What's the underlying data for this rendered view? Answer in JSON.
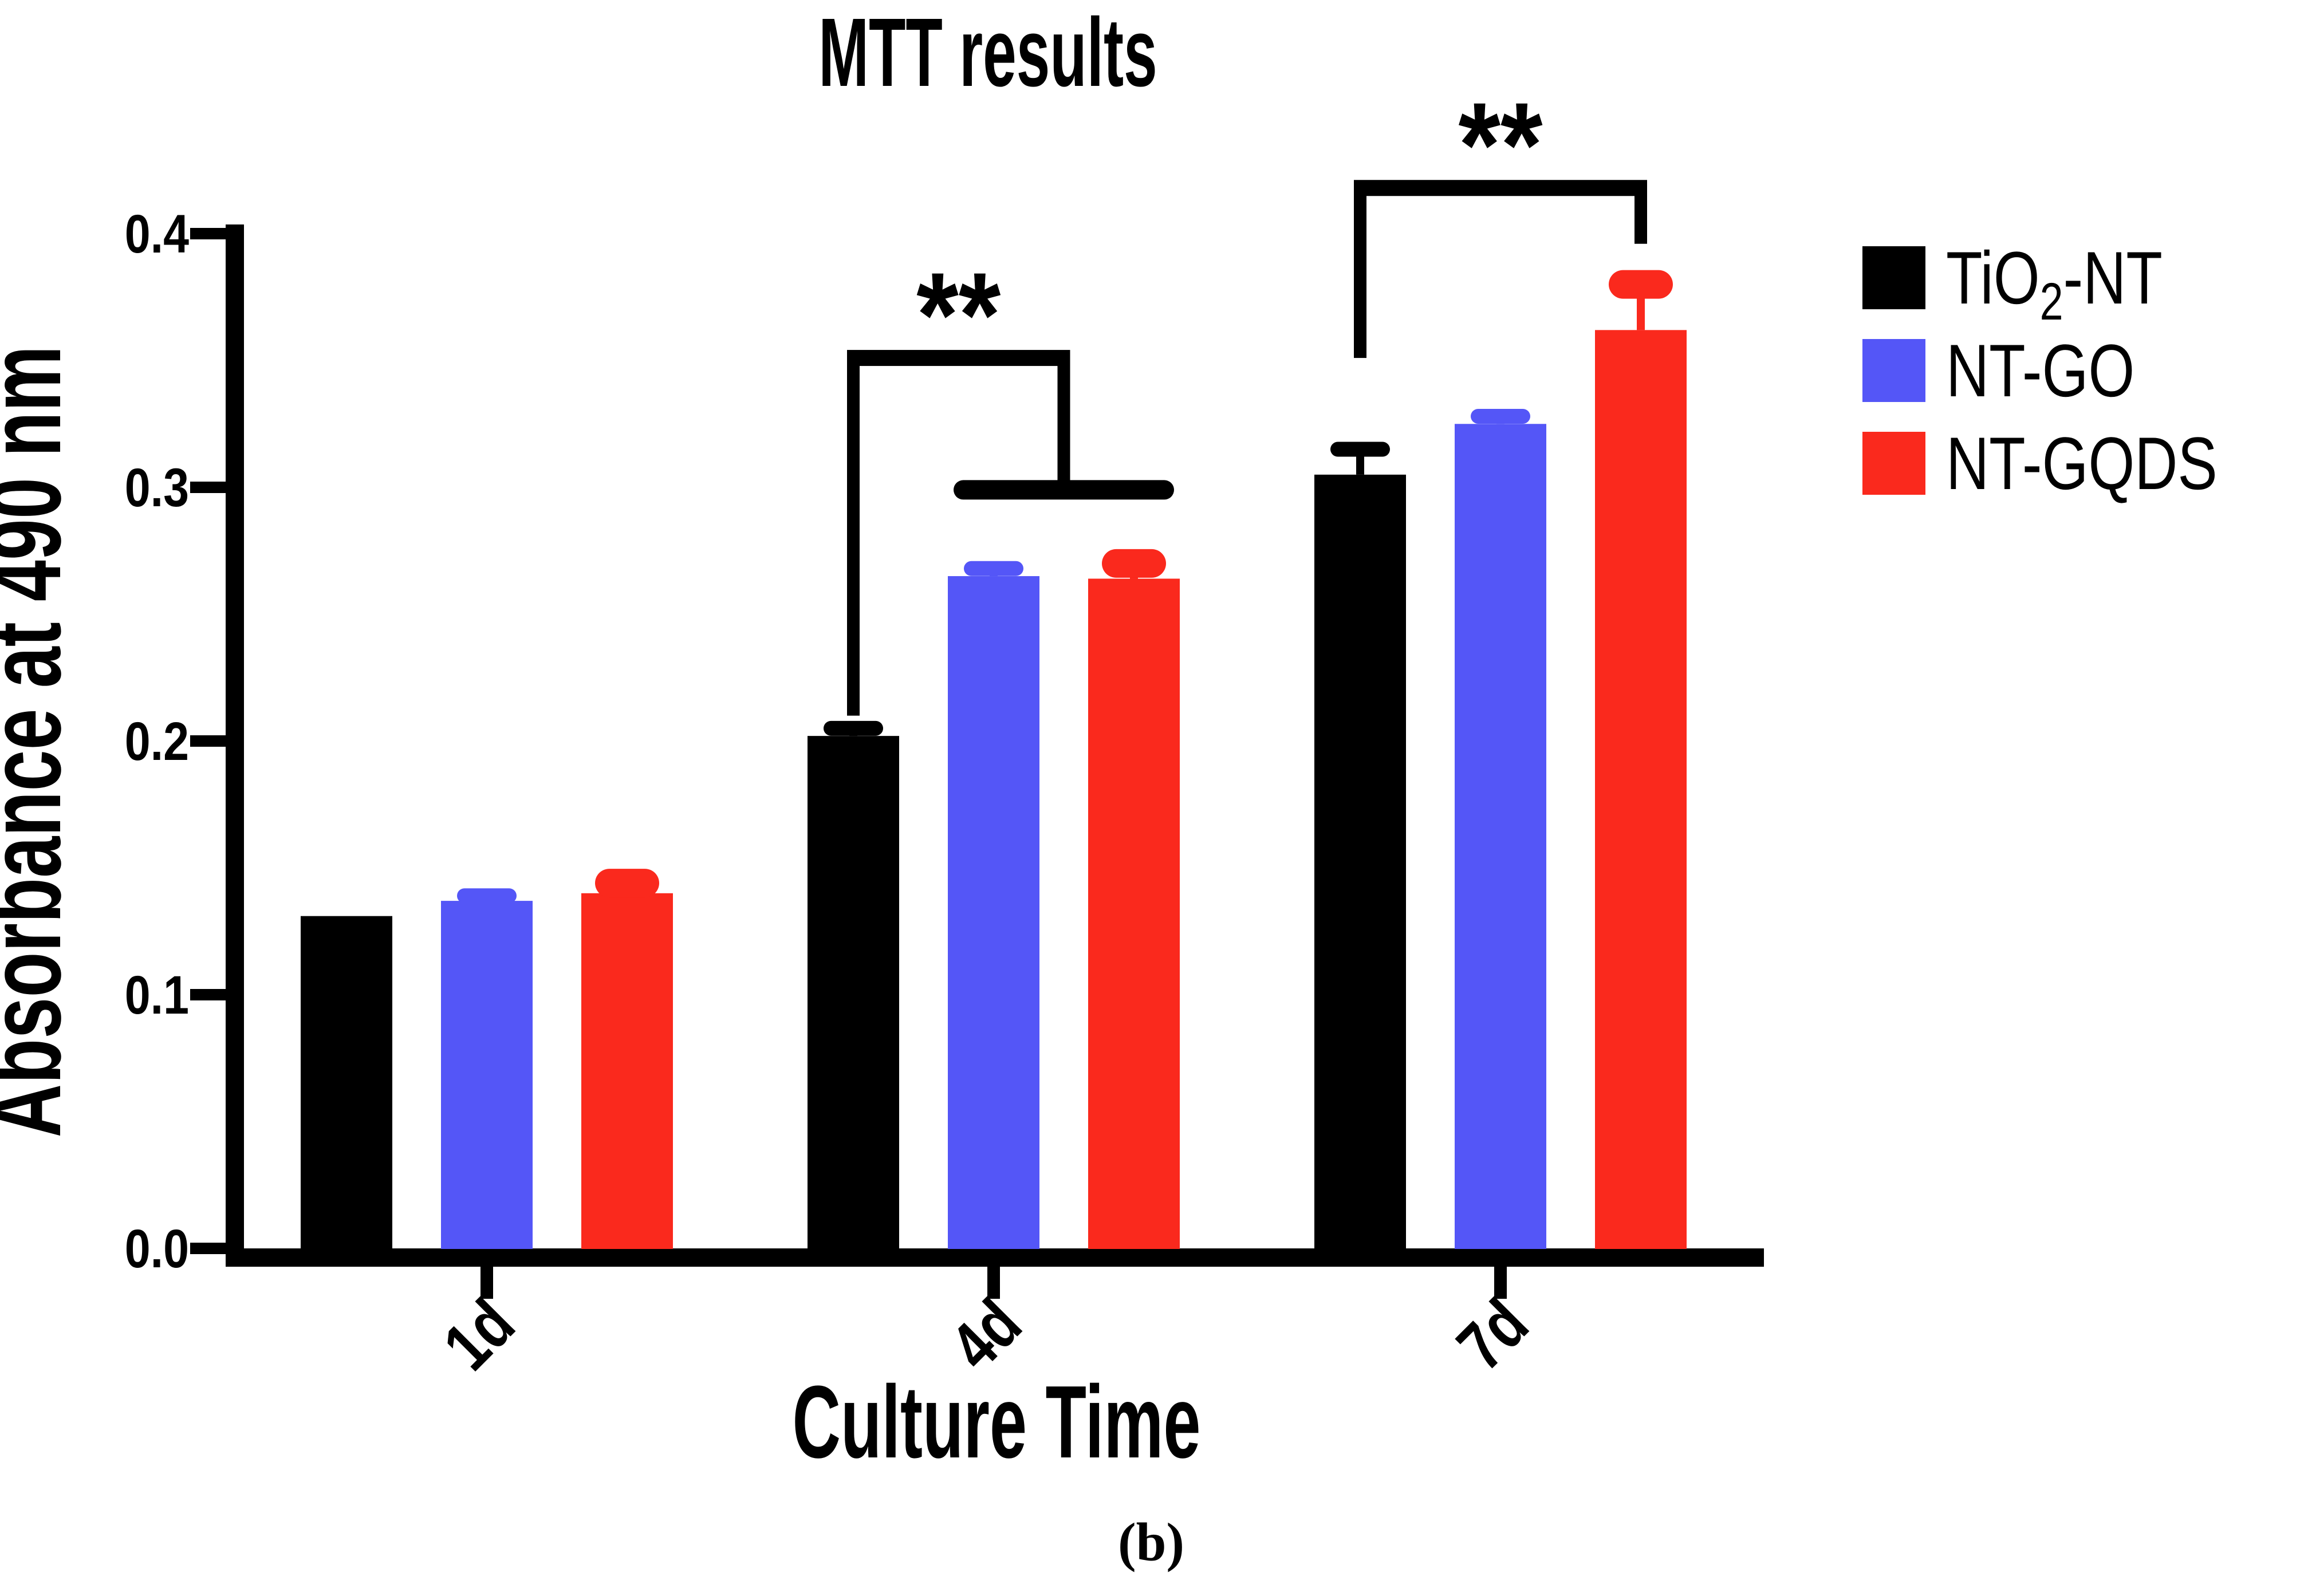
{
  "chart_data": {
    "type": "bar",
    "title": "MTT results",
    "xlabel": "Culture Time",
    "ylabel": "Absorbance at 490 nm",
    "caption": "(b)",
    "categories": [
      "1d",
      "4d",
      "7d"
    ],
    "series": [
      {
        "name": "TiO2-NT",
        "color": "#000000",
        "values": [
          0.131,
          0.202,
          0.305
        ],
        "errors": [
          0,
          0.003,
          0.01
        ]
      },
      {
        "name": "NT-GO",
        "color": "#5456F7",
        "values": [
          0.137,
          0.265,
          0.325
        ],
        "errors": [
          0.002,
          0.003,
          0.003
        ]
      },
      {
        "name": "NT-GQDS",
        "color": "#FA291D",
        "values": [
          0.14,
          0.264,
          0.362
        ],
        "errors": [
          0.004,
          0.006,
          0.018
        ]
      }
    ],
    "ylim": [
      0,
      0.4
    ],
    "ytick_values": [
      0.0,
      0.1,
      0.2,
      0.3,
      0.4
    ],
    "ytick_labels": [
      "0.0",
      "0.1",
      "0.2",
      "0.3",
      "0.4"
    ],
    "grid": false,
    "legend_position": "right",
    "legend": [
      {
        "parts": [
          {
            "text": "TiO"
          },
          {
            "text": "2",
            "subscript": true
          },
          {
            "text": "-NT"
          }
        ]
      },
      {
        "parts": [
          {
            "text": "NT-GO"
          }
        ]
      },
      {
        "parts": [
          {
            "text": "NT-GQDS"
          }
        ]
      }
    ],
    "significance": [
      {
        "label": "**",
        "category_index": 1,
        "top_value": 0.351,
        "left": {
          "series_index": 0,
          "drop_to_value": 0.21
        },
        "right": {
          "mid_between": [
            1,
            2
          ],
          "drop_to_value": 0.299
        },
        "tee": {
          "value": 0.299,
          "span": [
            1,
            2
          ]
        }
      },
      {
        "label": "**",
        "category_index": 2,
        "top_value": 0.418,
        "left": {
          "series_index": 0,
          "drop_to_value": 0.351
        },
        "right": {
          "series_index": 2,
          "drop_to_value": 0.396
        }
      }
    ],
    "colors": {
      "axis": "#000000",
      "background": "#ffffff"
    }
  }
}
